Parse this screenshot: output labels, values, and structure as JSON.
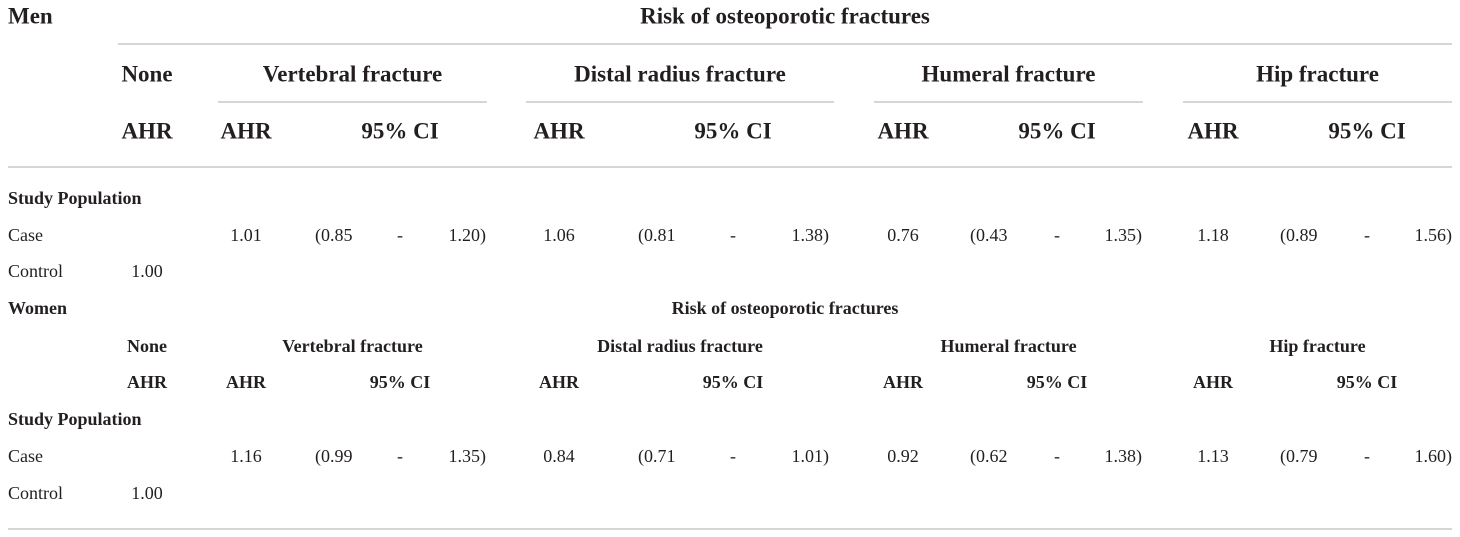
{
  "sections": [
    {
      "group": "Men",
      "title": "Risk of osteoporotic fractures",
      "reference": {
        "label": "None",
        "stat": "AHR"
      },
      "fractures": [
        {
          "name": "Vertebral fracture",
          "stat": "AHR",
          "ci": "95% CI"
        },
        {
          "name": "Distal radius fracture",
          "stat": "AHR",
          "ci": "95% CI"
        },
        {
          "name": "Humeral fracture",
          "stat": "AHR",
          "ci": "95% CI"
        },
        {
          "name": "Hip fracture",
          "stat": "AHR",
          "ci": "95% CI"
        }
      ],
      "subgroup": "Study Population",
      "rows": [
        {
          "label": "Case",
          "cells": [
            [
              "1.01",
              "(0.85",
              "-",
              "1.20)"
            ],
            [
              "1.06",
              "(0.81",
              "-",
              "1.38)"
            ],
            [
              "0.76",
              "(0.43",
              "-",
              "1.35)"
            ],
            [
              "1.18",
              "(0.89",
              "-",
              "1.56)"
            ]
          ]
        },
        {
          "label": "Control",
          "reference": "1.00"
        }
      ]
    },
    {
      "group": "Women",
      "title": "Risk of osteoporotic fractures",
      "reference": {
        "label": "None",
        "stat": "AHR"
      },
      "fractures": [
        {
          "name": "Vertebral fracture",
          "stat": "AHR",
          "ci": "95% CI"
        },
        {
          "name": "Distal radius fracture",
          "stat": "AHR",
          "ci": "95% CI"
        },
        {
          "name": "Humeral fracture",
          "stat": "AHR",
          "ci": "95% CI"
        },
        {
          "name": "Hip fracture",
          "stat": "AHR",
          "ci": "95% CI"
        }
      ],
      "subgroup": "Study Population",
      "rows": [
        {
          "label": "Case",
          "cells": [
            [
              "1.16",
              "(0.99",
              "-",
              "1.35)"
            ],
            [
              "0.84",
              "(0.71",
              "-",
              "1.01)"
            ],
            [
              "0.92",
              "(0.62",
              "-",
              "1.38)"
            ],
            [
              "1.13",
              "(0.79",
              "-",
              "1.60)"
            ]
          ]
        },
        {
          "label": "Control",
          "reference": "1.00"
        }
      ]
    }
  ]
}
